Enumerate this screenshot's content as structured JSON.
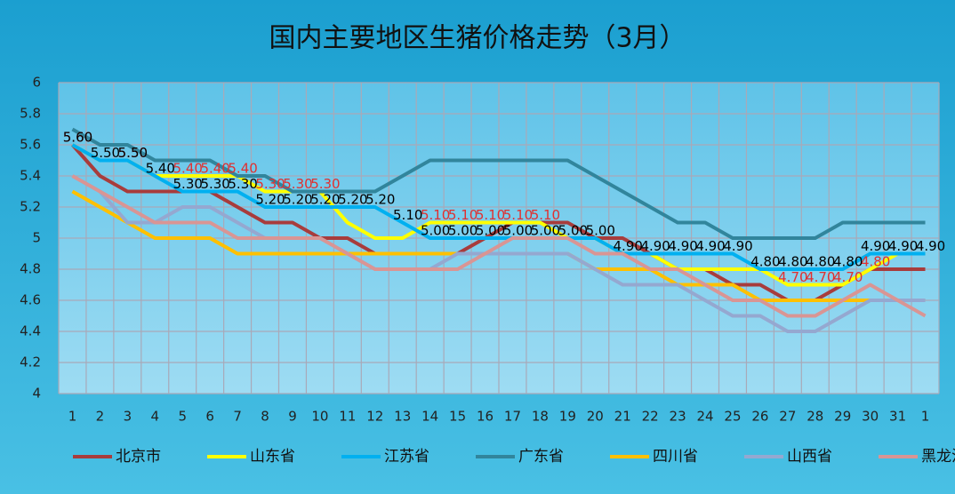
{
  "chart_data": {
    "type": "line",
    "title": "国内主要地区生猪价格走势（3月）",
    "categories": [
      "1",
      "2",
      "3",
      "4",
      "5",
      "6",
      "7",
      "8",
      "9",
      "10",
      "11",
      "12",
      "13",
      "14",
      "15",
      "16",
      "17",
      "18",
      "19",
      "20",
      "21",
      "22",
      "23",
      "24",
      "25",
      "26",
      "27",
      "28",
      "29",
      "30",
      "31",
      "1"
    ],
    "ylim": [
      4,
      6
    ],
    "yticks": [
      4,
      4.2,
      4.4,
      4.6,
      4.8,
      5,
      5.2,
      5.4,
      5.6,
      5.8,
      6
    ],
    "grid": true,
    "legend": "bottom",
    "series": [
      {
        "name": "北京市",
        "color": "#a83c3c",
        "values": [
          5.6,
          5.4,
          5.3,
          5.3,
          5.3,
          5.3,
          5.2,
          5.1,
          5.1,
          5.0,
          5.0,
          4.9,
          4.9,
          4.9,
          4.9,
          5.0,
          5.1,
          5.1,
          5.1,
          5.0,
          5.0,
          4.9,
          4.8,
          4.8,
          4.7,
          4.7,
          4.6,
          4.6,
          4.7,
          4.8,
          4.8,
          4.8
        ]
      },
      {
        "name": "山东省",
        "color": "#ffff00",
        "values": [
          5.6,
          5.5,
          5.5,
          5.4,
          5.4,
          5.4,
          5.4,
          5.3,
          5.3,
          5.3,
          5.1,
          5.0,
          5.0,
          5.1,
          5.1,
          5.1,
          5.1,
          5.1,
          5.0,
          5.0,
          4.9,
          4.9,
          4.8,
          4.8,
          4.8,
          4.8,
          4.7,
          4.7,
          4.7,
          4.8,
          4.9,
          4.9
        ],
        "label_color": "#e03030",
        "value_labels": [
          "5.60",
          null,
          "5.50",
          null,
          "5.40",
          "5.40",
          "5.40",
          "5.30",
          "5.30",
          "5.30",
          null,
          null,
          null,
          "5.10",
          "5.10",
          "5.10",
          "5.10",
          "5.10",
          null,
          null,
          null,
          null,
          null,
          null,
          null,
          null,
          "4.70",
          "4.70",
          "4.70",
          "4.80",
          null,
          null
        ]
      },
      {
        "name": "江苏省",
        "color": "#00b0f0",
        "values": [
          5.6,
          5.5,
          5.5,
          5.4,
          5.3,
          5.3,
          5.3,
          5.2,
          5.2,
          5.2,
          5.2,
          5.2,
          5.1,
          5.0,
          5.0,
          5.0,
          5.0,
          5.0,
          5.0,
          5.0,
          4.9,
          4.9,
          4.9,
          4.9,
          4.9,
          4.8,
          4.8,
          4.8,
          4.8,
          4.9,
          4.9,
          4.9
        ],
        "label_color": "#000000",
        "value_labels": [
          "5.60",
          "5.50",
          "5.50",
          "5.40",
          "5.30",
          "5.30",
          "5.30",
          "5.20",
          "5.20",
          "5.20",
          "5.20",
          "5.20",
          "5.10",
          "5.00",
          "5.00",
          "5.00",
          "5.00",
          "5.00",
          "5.00",
          "5.00",
          "4.90",
          "4.90",
          "4.90",
          "4.90",
          "4.90",
          "4.80",
          "4.80",
          "4.80",
          "4.80",
          "4.90",
          "4.90",
          "4.90"
        ]
      },
      {
        "name": "广东省",
        "color": "#31859c",
        "values": [
          5.7,
          5.6,
          5.6,
          5.5,
          5.5,
          5.5,
          5.4,
          5.4,
          5.3,
          5.3,
          5.3,
          5.3,
          5.4,
          5.5,
          5.5,
          5.5,
          5.5,
          5.5,
          5.5,
          5.4,
          5.3,
          5.2,
          5.1,
          5.1,
          5.0,
          5.0,
          5.0,
          5.0,
          5.1,
          5.1,
          5.1,
          5.1
        ]
      },
      {
        "name": "四川省",
        "color": "#ffc000",
        "values": [
          5.3,
          5.2,
          5.1,
          5.0,
          5.0,
          5.0,
          4.9,
          4.9,
          4.9,
          4.9,
          4.9,
          4.9,
          4.9,
          4.9,
          4.9,
          4.9,
          4.9,
          4.9,
          4.9,
          4.8,
          4.8,
          4.8,
          4.7,
          4.7,
          4.7,
          4.6,
          4.6,
          4.6,
          4.6,
          4.6,
          4.6,
          4.6
        ]
      },
      {
        "name": "山西省",
        "color": "#95a8d0",
        "values": [
          5.4,
          5.3,
          5.1,
          5.1,
          5.2,
          5.2,
          5.1,
          5.0,
          5.0,
          5.0,
          4.9,
          4.8,
          4.8,
          4.8,
          4.9,
          4.9,
          4.9,
          4.9,
          4.9,
          4.8,
          4.7,
          4.7,
          4.7,
          4.6,
          4.5,
          4.5,
          4.4,
          4.4,
          4.5,
          4.6,
          4.6,
          4.6
        ]
      },
      {
        "name": "黑龙江省",
        "color": "#d99594",
        "values": [
          5.4,
          5.3,
          5.2,
          5.1,
          5.1,
          5.1,
          5.0,
          5.0,
          5.0,
          5.0,
          4.9,
          4.8,
          4.8,
          4.8,
          4.8,
          4.9,
          5.0,
          5.0,
          5.0,
          4.9,
          4.9,
          4.8,
          4.8,
          4.7,
          4.6,
          4.6,
          4.5,
          4.5,
          4.6,
          4.7,
          4.6,
          4.5
        ]
      }
    ]
  }
}
